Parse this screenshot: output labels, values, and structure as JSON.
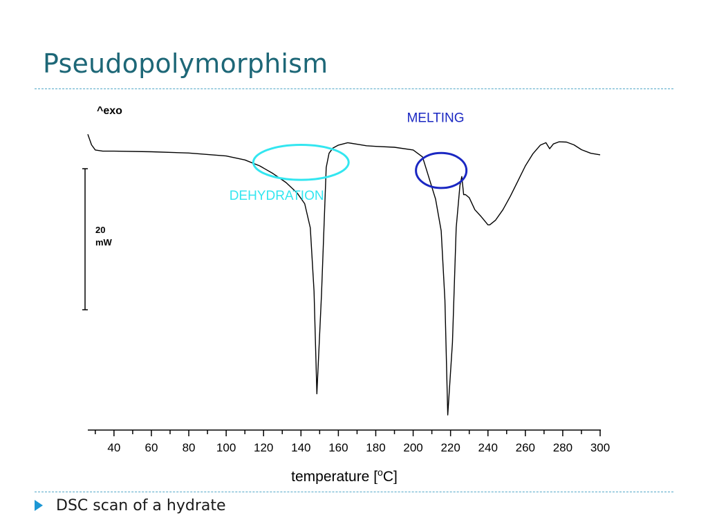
{
  "slide": {
    "title": "Pseudopolymorphism",
    "bullets": [
      "DSC scan of a hydrate"
    ]
  },
  "colors": {
    "title": "#1d6777",
    "rule": "#4fa6c7",
    "bullet": "#1c97d4",
    "curve": "#000000",
    "dehydration": "#33e6f0",
    "melting": "#1a27c2"
  },
  "chart_data": {
    "type": "line",
    "title": "",
    "xlabel": "temperature [°C]",
    "ylabel": "",
    "xlim": [
      26,
      300
    ],
    "ylim": [
      -97,
      7
    ],
    "x_ticks": [
      40,
      60,
      80,
      100,
      120,
      140,
      160,
      180,
      200,
      220,
      240,
      260,
      280,
      300
    ],
    "minor_tick_step": 10,
    "grid": false,
    "exo_label": "^exo",
    "scale_bar": {
      "value": "20",
      "unit": "mW"
    },
    "series": [
      {
        "x": [
          26,
          28,
          30,
          34,
          40,
          60,
          80,
          100,
          110,
          118,
          125,
          132,
          138,
          142,
          145,
          147,
          148.5,
          151,
          153.5,
          155,
          157,
          160,
          165,
          170,
          175,
          180,
          190,
          200,
          205,
          208,
          212,
          215,
          217,
          218.5,
          221,
          223,
          225,
          226,
          227,
          228,
          230,
          233,
          236,
          238,
          240,
          241,
          244,
          248,
          252,
          256,
          260,
          264,
          268,
          271,
          273,
          275,
          278,
          282,
          286,
          290,
          295,
          300
        ],
        "y": [
          1,
          -2.5,
          -4.2,
          -4.6,
          -4.6,
          -4.8,
          -5.2,
          -6.2,
          -7.5,
          -9.5,
          -12,
          -15,
          -18.5,
          -22,
          -30,
          -51,
          -85,
          -52,
          -10,
          -5.3,
          -3.6,
          -2.6,
          -1.8,
          -2.3,
          -2.8,
          -3,
          -3.3,
          -4.2,
          -6.5,
          -12.5,
          -20.5,
          -31,
          -54,
          -92,
          -68,
          -30,
          -16,
          -13,
          -19,
          -19,
          -20,
          -24,
          -26,
          -27.5,
          -29,
          -29,
          -27.5,
          -24,
          -19.5,
          -14.5,
          -9.5,
          -5.5,
          -2.6,
          -1.8,
          -3.8,
          -2.2,
          -1.5,
          -1.6,
          -2.5,
          -4.1,
          -5.3,
          -5.8
        ]
      }
    ],
    "annotations": [
      {
        "label": "DEHYDRATION",
        "shape": "ellipse",
        "color": "#33e6f0",
        "cx": 140,
        "cy": -8.3,
        "rx": 25.5,
        "ry": 5.8,
        "label_x": 127,
        "label_y": -20.7
      },
      {
        "label": "MELTING",
        "shape": "circle",
        "color": "#1a27c2",
        "cx": 215,
        "cy": -11,
        "rx": 13.5,
        "ry": 5.8,
        "label_x": 212,
        "label_y": 5
      }
    ]
  }
}
